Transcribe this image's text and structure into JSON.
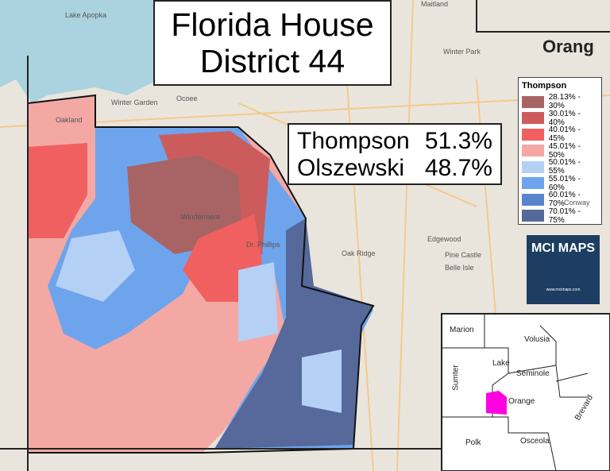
{
  "header": {
    "title_line1": "Florida House",
    "title_line2": "District 44"
  },
  "results": [
    {
      "name": "Thompson",
      "share": "51.3%"
    },
    {
      "name": "Olszewski",
      "share": "48.7%"
    }
  ],
  "legend": {
    "title": "Thompson",
    "items": [
      {
        "label": "28.13% - 30%",
        "color": "#a86464"
      },
      {
        "label": "30.01% - 40%",
        "color": "#cc5c5c"
      },
      {
        "label": "40.01% - 45%",
        "color": "#f06060"
      },
      {
        "label": "45.01% - 50%",
        "color": "#f4a8a4"
      },
      {
        "label": "50.01% - 55%",
        "color": "#b4d0f4"
      },
      {
        "label": "55.01% - 60%",
        "color": "#6ea4ec"
      },
      {
        "label": "60.01% - 70%",
        "color": "#5884cc"
      },
      {
        "label": "70.01% - 75%",
        "color": "#56699a"
      }
    ]
  },
  "logo": {
    "text": "MCI MAPS",
    "url": "www.mcimaps.com"
  },
  "inset": {
    "counties": [
      "Marion",
      "Volusia",
      "Lake",
      "Seminole",
      "Sumter",
      "Orange",
      "Brevard",
      "Polk",
      "Osceola"
    ]
  },
  "basemap": {
    "labels": [
      "Lake Apopka",
      "Winter Garden",
      "Ocoee",
      "Orang",
      "Windermere",
      "Oak Ridge",
      "Edgewood",
      "Conway",
      "Belle Isle",
      "Pine Castle",
      "Winter Park",
      "Maitland",
      "Oakland",
      "Dr. Phillips"
    ]
  }
}
